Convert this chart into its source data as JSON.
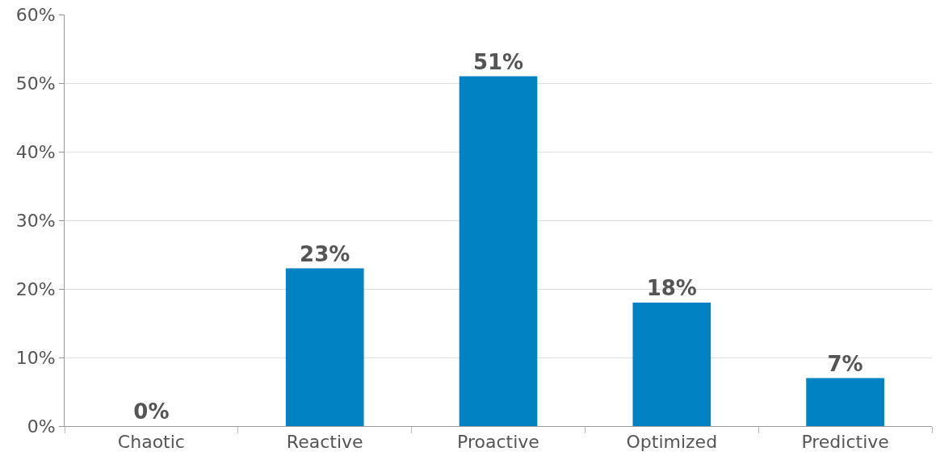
{
  "chart_data": {
    "type": "bar",
    "categories": [
      "Chaotic",
      "Reactive",
      "Proactive",
      "Optimized",
      "Predictive"
    ],
    "values": [
      0,
      23,
      51,
      18,
      7
    ],
    "value_labels": [
      "0%",
      "23%",
      "51%",
      "18%",
      "7%"
    ],
    "color": "#0082c3",
    "ylim": [
      0,
      60
    ],
    "yticks": [
      {
        "value": 0,
        "label": "0%"
      },
      {
        "value": 10,
        "label": "10%"
      },
      {
        "value": 20,
        "label": "20%"
      },
      {
        "value": 30,
        "label": "30%"
      },
      {
        "value": 40,
        "label": "40%"
      },
      {
        "value": 50,
        "label": "50%"
      },
      {
        "value": 60,
        "label": "60%"
      }
    ],
    "grid": "y",
    "legend": false
  }
}
